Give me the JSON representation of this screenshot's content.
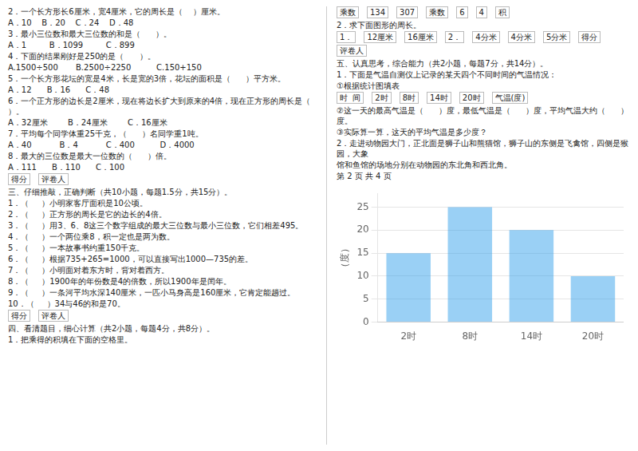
{
  "chart_data": {
    "type": "bar",
    "categories": [
      "2时",
      "8时",
      "14时",
      "20时"
    ],
    "values": [
      15,
      25,
      20,
      10
    ],
    "ylabel": "（度）",
    "ylim": [
      0,
      28
    ],
    "yticks": [
      0,
      5,
      10,
      15,
      20,
      25
    ],
    "grid": true,
    "annotations": [
      "2．一个长方形长6厘米，宽4厘米，它的周长是（    ）厘米。",
      "A．10    B．20    C．24    D．48",
      "3．最小三位数和最大三位数的和是（      ）。",
      "A．1         B．1099         C．899",
      "4．下面的结果刚好是250的是（      ）。",
      "A.1500÷500       B.2500÷2250          C.150+150",
      "5．一个长方形花坛的宽是4米，长是宽的3倍，花坛的面积是（      ）平方米。",
      "A．12      B．16      C．48",
      "6．一个正方形的边长是2厘米，现在将边长扩大到原来的4倍，现在正方形的周长是（         ）。",
      "A．32厘米        B．24厘米        C．16厘米",
      "7．平均每个同学体重25千克，（      ）名同学重1吨。",
      "A．40           B．4           C．400          D．4000",
      "8．最大的三位数是最大一位数的（      ）倍。",
      "A．111      B．110      C．100",
      "得分",
      "评卷人",
      "三、仔细推敲，正确判断（共10小题，每题1.5分，共15分）。",
      "1．（     ）小明家客厅面积是10公顷。",
      "2．（     ）正方形的周长是它的边长的4倍。",
      "3．（     ）用3、6、8这三个数字组成的最大三位数与最小三位数，它们相差495。",
      "4．（     ）一个两位乘8，积一定也是两为数。",
      "5．（     ）一本故事书约重150千克。",
      "6．（     ）根据735+265=1000，可以直接写出1000—735的差。",
      "7．（     ）小明面对着东方时，背对着西方。",
      "8．（     ）1900年的年份数是4的倍数，所以1900年是闰年。",
      "9．（     ）一条河平均水深140厘米，一匹小马身高是160厘米，它肯定能趟过。",
      "10．（     ）34与46的和是70。",
      "得分",
      "评卷人",
      "四、看清题目，细心计算（共2小题，每题4分，共8分）。",
      "1．把乘得的积填在下面的空格里。",
      "乘数",
      "134",
      "307",
      "乘数",
      "6",
      "4",
      "积",
      "2．求下面图形的周长。",
      "1．",
      "12厘米",
      "16厘米",
      "2．",
      "4分米",
      "4分米",
      "5分米",
      "得分",
      "评卷人",
      "五、认真思考，综合能力（共2小题，每题7分，共14分）。",
      "1．下面是气温自测仪上记录的某天四个不同时间的气温情况：",
      "①根据统计图填表",
      "时  间",
      "2时",
      "8时",
      "14时",
      "20时",
      "气温(度)",
      "②这一天的最高气温是（      ）度，最低气温是（      ）度，平均气温大约（      ）度。",
      "③实际算一算，这天的平均气温是多少度？",
      "2．走进动物园大门，正北面是狮子山和熊猫馆，狮子山的东侧是飞禽馆，四侧是猴园，大象",
      "馆和鱼馆的场地分别在动物园的东北角和西北角。",
      "第 2 页 共 4 页"
    ]
  }
}
